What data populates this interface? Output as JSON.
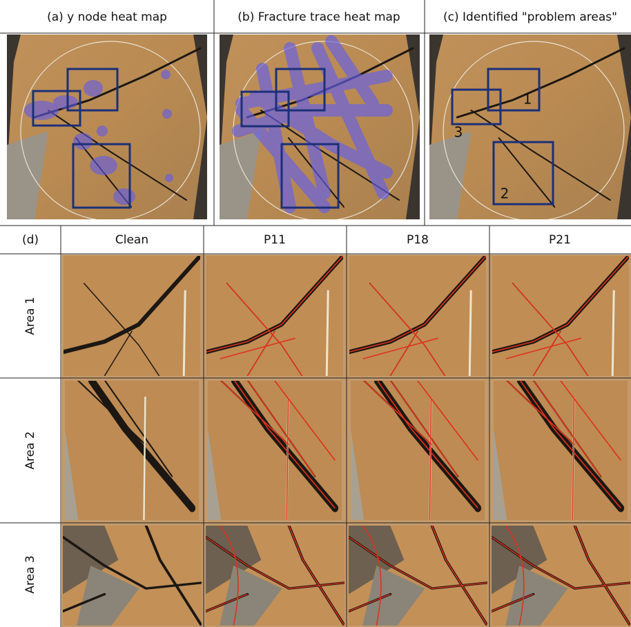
{
  "panels": [
    {
      "title": "(a) y node heat map"
    },
    {
      "title": "(b) Fracture trace heat map"
    },
    {
      "title": "(c) Identified \"problem areas\"",
      "box_labels": [
        "1",
        "2",
        "3"
      ]
    }
  ],
  "table": {
    "corner": "(d)",
    "columns": [
      "Clean",
      "P11",
      "P18",
      "P21"
    ],
    "rows": [
      "Area 1",
      "Area 2",
      "Area 3"
    ]
  }
}
